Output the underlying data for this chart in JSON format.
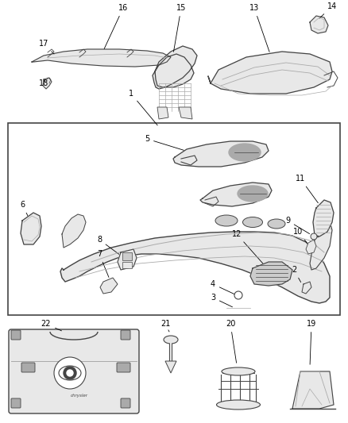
{
  "bg_color": "#ffffff",
  "lc": "#444444",
  "lc2": "#666666",
  "lgray": "#e8e8e8",
  "gray": "#cccccc",
  "dgray": "#aaaaaa",
  "fig_w": 4.38,
  "fig_h": 5.33,
  "dpi": 100
}
